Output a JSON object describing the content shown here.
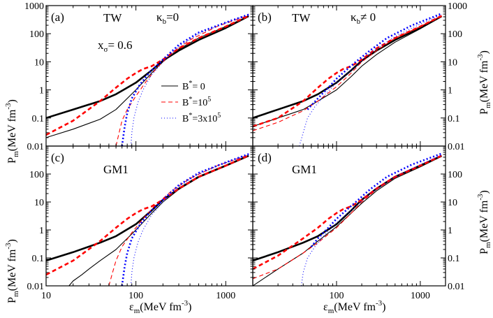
{
  "chart_data": {
    "type": "line",
    "xscale": "log",
    "yscale": "log",
    "xlim": [
      10,
      2000
    ],
    "ylim": [
      0.01,
      1000
    ],
    "x_ticks": [
      10,
      100,
      1000
    ],
    "y_ticks": [
      0.01,
      0.1,
      1,
      10,
      100,
      1000
    ],
    "x_tick_labels": [
      "10",
      "100",
      "1000"
    ],
    "y_tick_labels": [
      "0.01",
      "0.1",
      "1",
      "10",
      "100",
      "1000"
    ],
    "xlabel": {
      "main": "ε",
      "sub": "m",
      "units": "(MeV fm",
      "sup": "-3",
      "close": ")"
    },
    "ylabel": {
      "main": "P",
      "sub": "m",
      "units": "(MeV fm",
      "sup": "-3",
      "close": ")"
    },
    "legend": {
      "placement": "panel-a lower-right",
      "entries": [
        {
          "key": "b0",
          "prefix": "B",
          "sup": "*",
          "suffix": "= 0",
          "sup2": ""
        },
        {
          "key": "b1",
          "prefix": "B",
          "sup": "*",
          "suffix": "=10",
          "sup2": "5"
        },
        {
          "key": "b3",
          "prefix": "B",
          "sup": "*",
          "suffix": "=3x10",
          "sup2": "5"
        }
      ]
    },
    "series_styles": {
      "b0": {
        "color": "#000000",
        "dash": ""
      },
      "b1": {
        "color": "#ff0000",
        "dash": "6,4"
      },
      "b3": {
        "color": "#0000ff",
        "dash": "1,3"
      }
    },
    "panels": [
      {
        "id": "a",
        "letter": "(a)",
        "model": "TW",
        "kappa": {
          "symbol": "κ",
          "sub": "b",
          "rel": "=0"
        },
        "note": {
          "main": "x",
          "sub": "σ",
          "rest": "= 0.6"
        },
        "series": [
          {
            "key": "b0",
            "variant": "parallel",
            "x": [
              10,
              20,
              40,
              60,
              100,
              150,
              200,
              300,
              500,
              1000,
              1800
            ],
            "y": [
              0.1,
              0.2,
              0.4,
              0.7,
              1.8,
              5,
              11,
              25,
              60,
              160,
              420
            ]
          },
          {
            "key": "b0",
            "variant": "perpendicular",
            "x": [
              10,
              20,
              40,
              60,
              100,
              150,
              200,
              300,
              500,
              1000,
              1800
            ],
            "y": [
              0.02,
              0.04,
              0.09,
              0.2,
              1.0,
              4,
              10,
              28,
              70,
              180,
              420
            ]
          },
          {
            "key": "b1",
            "variant": "parallel",
            "x": [
              10,
              20,
              40,
              60,
              80,
              100,
              120,
              150,
              200,
              300,
              500,
              1000,
              1800
            ],
            "y": [
              0.025,
              0.08,
              0.4,
              1.2,
              2.5,
              4,
              5.5,
              7,
              12,
              30,
              70,
              180,
              430
            ]
          },
          {
            "key": "b1",
            "variant": "perpendicular",
            "x": [
              60,
              65,
              70,
              80,
              100,
              130,
              170,
              250,
              400,
              800,
              1800
            ],
            "y": [
              0.01,
              0.03,
              0.08,
              0.2,
              0.6,
              2.0,
              6,
              20,
              60,
              180,
              450
            ]
          },
          {
            "key": "b3",
            "variant": "parallel",
            "x": [
              70,
              75,
              80,
              90,
              110,
              140,
              200,
              300,
              500,
              1000,
              1800
            ],
            "y": [
              0.01,
              0.05,
              0.15,
              0.5,
              1.5,
              4,
              12,
              40,
              110,
              250,
              480
            ]
          },
          {
            "key": "b3",
            "variant": "perpendicular",
            "x": [
              88,
              90,
              95,
              105,
              120,
              150,
              200,
              300,
              500,
              1000,
              1800
            ],
            "y": [
              0.01,
              0.03,
              0.1,
              0.35,
              1.0,
              3.5,
              10,
              35,
              100,
              240,
              470
            ]
          }
        ]
      },
      {
        "id": "b",
        "letter": "(b)",
        "model": "TW",
        "kappa": {
          "symbol": "κ",
          "sub": "b",
          "rel": "≠ 0"
        },
        "note": null,
        "series": [
          {
            "key": "b0",
            "variant": "parallel",
            "x": [
              10,
              20,
              40,
              60,
              100,
              150,
              200,
              300,
              500,
              1000,
              1800
            ],
            "y": [
              0.1,
              0.2,
              0.4,
              0.7,
              1.8,
              5,
              11,
              25,
              60,
              160,
              420
            ]
          },
          {
            "key": "b0",
            "variant": "perpendicular",
            "x": [
              10,
              20,
              40,
              60,
              100,
              150,
              200,
              300,
              500,
              1000,
              1800
            ],
            "y": [
              0.05,
              0.1,
              0.2,
              0.4,
              1.0,
              3,
              7,
              18,
              50,
              150,
              400
            ]
          },
          {
            "key": "b1",
            "variant": "parallel",
            "x": [
              10,
              20,
              40,
              60,
              80,
              100,
              120,
              150,
              200,
              300,
              500,
              1000,
              1800
            ],
            "y": [
              0.05,
              0.1,
              0.4,
              1.2,
              2.5,
              4,
              5.5,
              7,
              12,
              30,
              70,
              180,
              430
            ]
          },
          {
            "key": "b1",
            "variant": "perpendicular",
            "x": [
              10,
              20,
              40,
              60,
              100,
              150,
              200,
              300,
              500,
              1000,
              1800
            ],
            "y": [
              0.035,
              0.07,
              0.18,
              0.4,
              1.3,
              4,
              10,
              25,
              70,
              180,
              430
            ]
          },
          {
            "key": "b3",
            "variant": "parallel",
            "x": [
              45,
              60,
              80,
              100,
              130,
              170,
              250,
              400,
              800,
              1800
            ],
            "y": [
              0.2,
              0.5,
              1.2,
              2.5,
              5,
              10,
              25,
              70,
              200,
              520
            ]
          },
          {
            "key": "b3",
            "variant": "perpendicular",
            "x": [
              36,
              40,
              45,
              55,
              70,
              100,
              150,
              250,
              500,
              1000,
              1800
            ],
            "y": [
              0.01,
              0.03,
              0.1,
              0.25,
              0.6,
              1.8,
              5,
              20,
              80,
              220,
              480
            ]
          }
        ]
      },
      {
        "id": "c",
        "letter": "(c)",
        "model": "GM1",
        "kappa": null,
        "note": null,
        "series": [
          {
            "key": "b0",
            "variant": "parallel",
            "x": [
              10,
              20,
              40,
              60,
              100,
              150,
              200,
              300,
              500,
              1000,
              1800
            ],
            "y": [
              0.08,
              0.16,
              0.35,
              0.6,
              1.6,
              5,
              12,
              30,
              80,
              200,
              450
            ]
          },
          {
            "key": "b0",
            "variant": "perpendicular",
            "x": [
              18,
              20,
              25,
              30,
              40,
              60,
              100,
              150,
              200,
              300,
              500,
              1000,
              1800
            ],
            "y": [
              0.01,
              0.015,
              0.025,
              0.04,
              0.08,
              0.2,
              1.0,
              4,
              10,
              28,
              75,
              190,
              440
            ]
          },
          {
            "key": "b1",
            "variant": "parallel",
            "x": [
              10,
              20,
              40,
              60,
              80,
              100,
              120,
              150,
              200,
              300,
              500,
              1000,
              1800
            ],
            "y": [
              0.025,
              0.08,
              0.4,
              1.2,
              2.5,
              4,
              5.5,
              7,
              12,
              30,
              80,
              200,
              460
            ]
          },
          {
            "key": "b1",
            "variant": "perpendicular",
            "x": [
              50,
              55,
              60,
              70,
              90,
              120,
              160,
              250,
              400,
              800,
              1800
            ],
            "y": [
              0.01,
              0.03,
              0.08,
              0.25,
              0.8,
              2.5,
              7,
              25,
              70,
              200,
              480
            ]
          },
          {
            "key": "b3",
            "variant": "parallel",
            "x": [
              70,
              75,
              80,
              90,
              110,
              140,
              200,
              300,
              500,
              1000,
              1800
            ],
            "y": [
              0.01,
              0.05,
              0.15,
              0.5,
              1.5,
              4,
              12,
              40,
              110,
              260,
              520
            ]
          },
          {
            "key": "b3",
            "variant": "perpendicular",
            "x": [
              88,
              90,
              95,
              105,
              120,
              150,
              200,
              300,
              500,
              1000,
              1800
            ],
            "y": [
              0.01,
              0.03,
              0.1,
              0.35,
              1.0,
              3.5,
              10,
              35,
              100,
              250,
              500
            ]
          }
        ]
      },
      {
        "id": "d",
        "letter": "(d)",
        "model": "GM1",
        "kappa": null,
        "note": null,
        "series": [
          {
            "key": "b0",
            "variant": "parallel",
            "x": [
              10,
              20,
              40,
              60,
              100,
              150,
              200,
              300,
              500,
              1000,
              1800
            ],
            "y": [
              0.08,
              0.16,
              0.35,
              0.6,
              1.6,
              5,
              12,
              30,
              80,
              200,
              450
            ]
          },
          {
            "key": "b0",
            "variant": "perpendicular",
            "x": [
              10,
              20,
              40,
              60,
              100,
              150,
              200,
              300,
              500,
              1000,
              1800
            ],
            "y": [
              0.01,
              0.04,
              0.15,
              0.4,
              1.3,
              4,
              9,
              25,
              70,
              180,
              430
            ]
          },
          {
            "key": "b1",
            "variant": "parallel",
            "x": [
              10,
              20,
              40,
              60,
              80,
              100,
              120,
              150,
              200,
              300,
              500,
              1000,
              1800
            ],
            "y": [
              0.04,
              0.12,
              0.5,
              1.2,
              2.5,
              4,
              5.5,
              7,
              12,
              30,
              80,
              200,
              460
            ]
          },
          {
            "key": "b1",
            "variant": "perpendicular",
            "x": [
              10,
              20,
              40,
              60,
              100,
              150,
              200,
              300,
              500,
              1000,
              1800
            ],
            "y": [
              0.018,
              0.04,
              0.15,
              0.35,
              1.2,
              4,
              10,
              28,
              75,
              190,
              440
            ]
          },
          {
            "key": "b3",
            "variant": "parallel",
            "x": [
              50,
              60,
              80,
              100,
              130,
              170,
              250,
              400,
              800,
              1800
            ],
            "y": [
              0.25,
              0.5,
              1.2,
              2.5,
              5,
              10,
              28,
              80,
              220,
              540
            ]
          },
          {
            "key": "b3",
            "variant": "perpendicular",
            "x": [
              38,
              40,
              45,
              55,
              70,
              100,
              150,
              250,
              500,
              1000,
              1800
            ],
            "y": [
              0.01,
              0.03,
              0.1,
              0.25,
              0.6,
              1.8,
              5,
              20,
              80,
              220,
              480
            ]
          }
        ]
      }
    ]
  }
}
